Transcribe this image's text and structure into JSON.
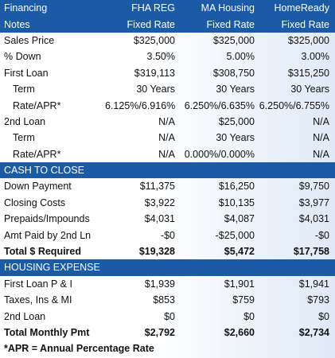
{
  "header": {
    "rows": [
      [
        "Financing",
        "FHA REG",
        "MA Housing",
        "HomeReady"
      ],
      [
        "Notes",
        "Fixed Rate",
        "Fixed Rate",
        "Fixed Rate"
      ]
    ]
  },
  "sections": [
    {
      "rows": [
        [
          "Sales Price",
          "$325,000",
          "$325,000",
          "$325,000"
        ],
        [
          "% Down",
          "3.50%",
          "5.00%",
          "3.00%"
        ],
        [
          "First Loan",
          "$319,113",
          "$308,750",
          "$315,250"
        ],
        [
          "Term",
          "30 Years",
          "30 Years",
          "30 Years"
        ],
        [
          "Rate/APR*",
          "6.125%/6.916%",
          "6.250%/6.635%",
          "6.250%/6.755%"
        ],
        [
          "2nd Loan",
          "N/A",
          "$25,000",
          "N/A"
        ],
        [
          "Term",
          "N/A",
          "30 Years",
          "N/A"
        ],
        [
          "Rate/APR*",
          "N/A",
          "0.000%/0.000%",
          "N/A"
        ]
      ]
    },
    {
      "title": "CASH TO CLOSE",
      "rows": [
        [
          "Down Payment",
          "$11,375",
          "$16,250",
          "$9,750"
        ],
        [
          "Closing Costs",
          "$3,922",
          "$10,135",
          "$3,977"
        ],
        [
          "Prepaids/Impounds",
          "$4,031",
          "$4,087",
          "$4,031"
        ],
        [
          "Amt Paid by 2nd Ln",
          "-$0",
          "-$25,000",
          "-$0"
        ],
        [
          "Total $ Required",
          "$19,328",
          "$5,472",
          "$17,758"
        ]
      ]
    },
    {
      "title": "HOUSING EXPENSE",
      "rows": [
        [
          "First Loan P & I",
          "$1,939",
          "$1,901",
          "$1,941"
        ],
        [
          "Taxes, Ins & MI",
          "$853",
          "$759",
          "$793"
        ],
        [
          "2nd Loan",
          "$0",
          "$0",
          "$0"
        ],
        [
          "Total Monthly Pmt",
          "$2,792",
          "$2,660",
          "$2,734"
        ]
      ]
    }
  ],
  "footnote": "*APR = Annual Percentage Rate"
}
